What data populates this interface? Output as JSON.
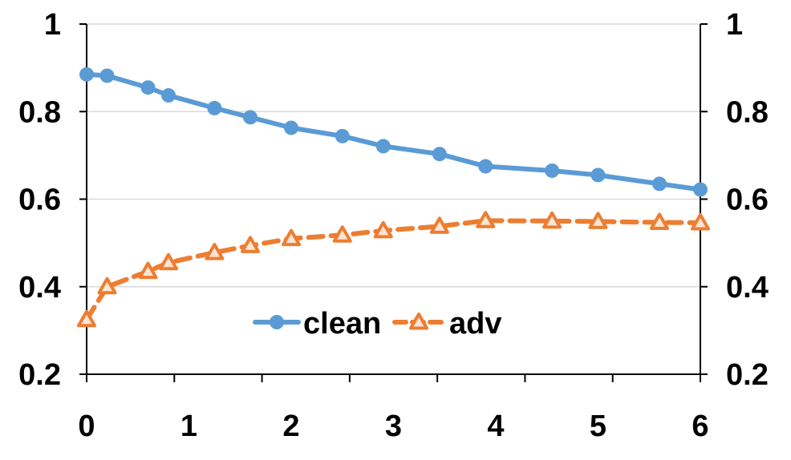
{
  "chart_data": {
    "type": "line",
    "title": "",
    "xlabel": "",
    "ylabel": "",
    "xlim": [
      0,
      6
    ],
    "ylim": [
      0.2,
      1
    ],
    "x_ticks": [
      "0",
      "1",
      "2",
      "3",
      "4",
      "5",
      "6"
    ],
    "y_ticks": [
      "0.2",
      "0.4",
      "0.6",
      "0.8",
      "1"
    ],
    "y2_ticks": [
      "0.2",
      "0.4",
      "0.6",
      "0.8",
      "1"
    ],
    "grid": "horizontal",
    "legend_position": "center-bottom",
    "series": [
      {
        "name": "clean",
        "color": "#5B9BD5",
        "marker": "circle",
        "line_style": "solid",
        "x": [
          0,
          0.2,
          0.6,
          0.8,
          1.25,
          1.6,
          2,
          2.5,
          2.9,
          3.45,
          3.9,
          4.55,
          5,
          5.6,
          6
        ],
        "y": [
          0.885,
          0.882,
          0.855,
          0.837,
          0.808,
          0.787,
          0.763,
          0.744,
          0.721,
          0.703,
          0.675,
          0.665,
          0.655,
          0.635,
          0.622
        ]
      },
      {
        "name": "adv",
        "color": "#ED7D31",
        "marker": "triangle",
        "line_style": "dashed",
        "x": [
          0,
          0.2,
          0.6,
          0.8,
          1.25,
          1.6,
          2,
          2.5,
          2.9,
          3.45,
          3.9,
          4.55,
          5,
          5.6,
          6
        ],
        "y": [
          0.325,
          0.4,
          0.435,
          0.455,
          0.478,
          0.494,
          0.51,
          0.518,
          0.528,
          0.538,
          0.551,
          0.55,
          0.549,
          0.547,
          0.546
        ]
      }
    ]
  }
}
